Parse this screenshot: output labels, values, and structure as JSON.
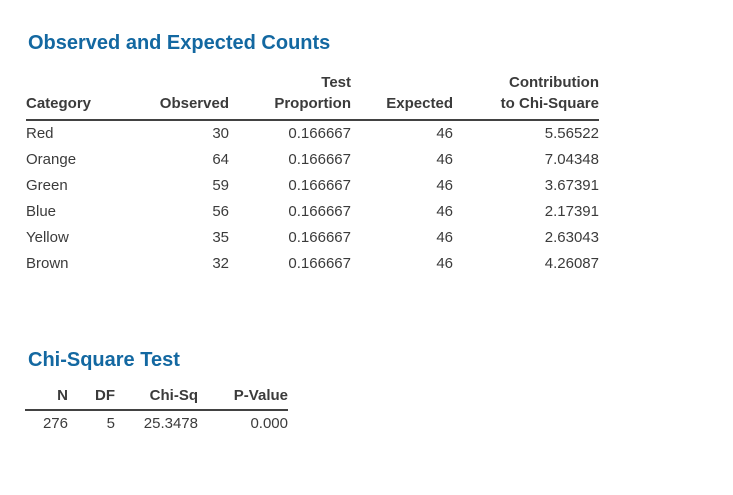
{
  "colors": {
    "heading_blue": "#1368a1",
    "body_text": "#3b3b3b",
    "rule": "#424242",
    "background": "#ffffff"
  },
  "observed_section": {
    "title": "Observed and Expected Counts",
    "table": {
      "headers": [
        "Category",
        "Observed",
        "Test\nProportion",
        "Expected",
        "Contribution\nto Chi-Square"
      ],
      "rows": [
        {
          "category": "Red",
          "observed": "30",
          "test_proportion": "0.166667",
          "expected": "46",
          "contribution": "5.56522"
        },
        {
          "category": "Orange",
          "observed": "64",
          "test_proportion": "0.166667",
          "expected": "46",
          "contribution": "7.04348"
        },
        {
          "category": "Green",
          "observed": "59",
          "test_proportion": "0.166667",
          "expected": "46",
          "contribution": "3.67391"
        },
        {
          "category": "Blue",
          "observed": "56",
          "test_proportion": "0.166667",
          "expected": "46",
          "contribution": "2.17391"
        },
        {
          "category": "Yellow",
          "observed": "35",
          "test_proportion": "0.166667",
          "expected": "46",
          "contribution": "2.63043"
        },
        {
          "category": "Brown",
          "observed": "32",
          "test_proportion": "0.166667",
          "expected": "46",
          "contribution": "4.26087"
        }
      ]
    }
  },
  "chisq_section": {
    "title": "Chi-Square Test",
    "table": {
      "headers": [
        "N",
        "DF",
        "Chi-Sq",
        "P-Value"
      ],
      "values": [
        "276",
        "5",
        "25.3478",
        "0.000"
      ]
    }
  }
}
